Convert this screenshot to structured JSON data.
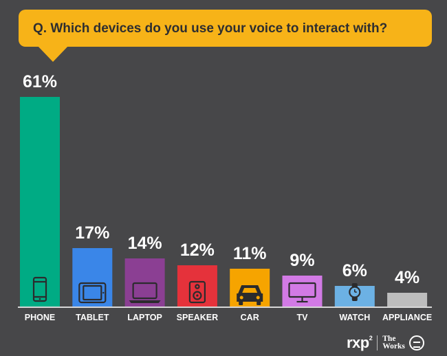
{
  "question": "Q. Which devices do you use your voice to interact with?",
  "colors": {
    "background": "#474749",
    "bubble": "#f7b318",
    "axis": "#d8d8d8"
  },
  "chart_data": {
    "type": "bar",
    "categories": [
      "PHONE",
      "TABLET",
      "LAPTOP",
      "SPEAKER",
      "CAR",
      "TV",
      "WATCH",
      "APPLIANCE"
    ],
    "values": [
      61,
      17,
      14,
      12,
      11,
      9,
      6,
      4
    ],
    "value_labels": [
      "61%",
      "17%",
      "14%",
      "12%",
      "11%",
      "9%",
      "6%",
      "4%"
    ],
    "icons": [
      "phone-icon",
      "tablet-icon",
      "laptop-icon",
      "speaker-icon",
      "car-icon",
      "tv-icon",
      "watch-icon",
      ""
    ],
    "bar_colors": [
      "#00ab84",
      "#3a86e8",
      "#8b3f93",
      "#e5323b",
      "#f6a400",
      "#d27ae5",
      "#6cb1e4",
      "#bdbdbd"
    ],
    "ylim": [
      0,
      61
    ],
    "grid": false,
    "legend": "none"
  },
  "logos": {
    "rxp": "rxp",
    "rxp_mark": "2",
    "works_line1": "The",
    "works_line2": "Works"
  }
}
